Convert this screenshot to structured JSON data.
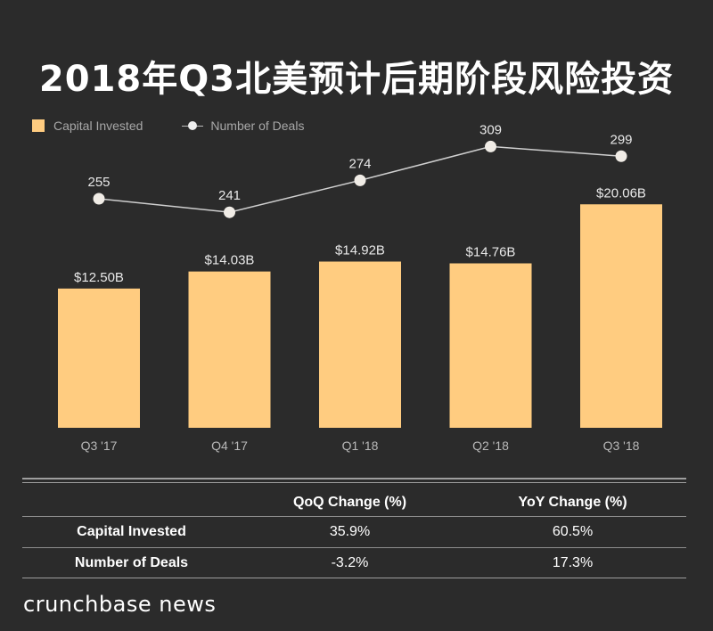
{
  "title": "2018年Q3北美预计后期阶段风险投资",
  "colors": {
    "bar": "#ffcc80",
    "line": "#cfcfcf",
    "marker": "#f0ece6",
    "background": "#2b2b2b"
  },
  "legend": {
    "bars": "Capital Invested",
    "line": "Number of Deals"
  },
  "chart_data": {
    "type": "bar",
    "categories": [
      "Q3 '17",
      "Q4 '17",
      "Q1 '18",
      "Q2 '18",
      "Q3 '18"
    ],
    "series": [
      {
        "name": "Capital Invested",
        "type": "bar",
        "values": [
          12.5,
          14.03,
          14.92,
          14.76,
          20.06
        ],
        "labels": [
          "$12.50B",
          "$14.03B",
          "$14.92B",
          "$14.76B",
          "$20.06B"
        ]
      },
      {
        "name": "Number of Deals",
        "type": "line",
        "values": [
          255,
          241,
          274,
          309,
          299
        ],
        "labels": [
          "255",
          "241",
          "274",
          "309",
          "299"
        ]
      }
    ],
    "legend": "top-left",
    "grid": false
  },
  "table": {
    "headers": [
      "",
      "QoQ Change (%)",
      "YoY Change (%)"
    ],
    "rows": [
      {
        "label": "Capital Invested",
        "qoq": "35.9%",
        "yoy": "60.5%"
      },
      {
        "label": "Number of Deals",
        "qoq": "-3.2%",
        "yoy": "17.3%"
      }
    ]
  },
  "footer": {
    "brand": "crunchbase news"
  }
}
